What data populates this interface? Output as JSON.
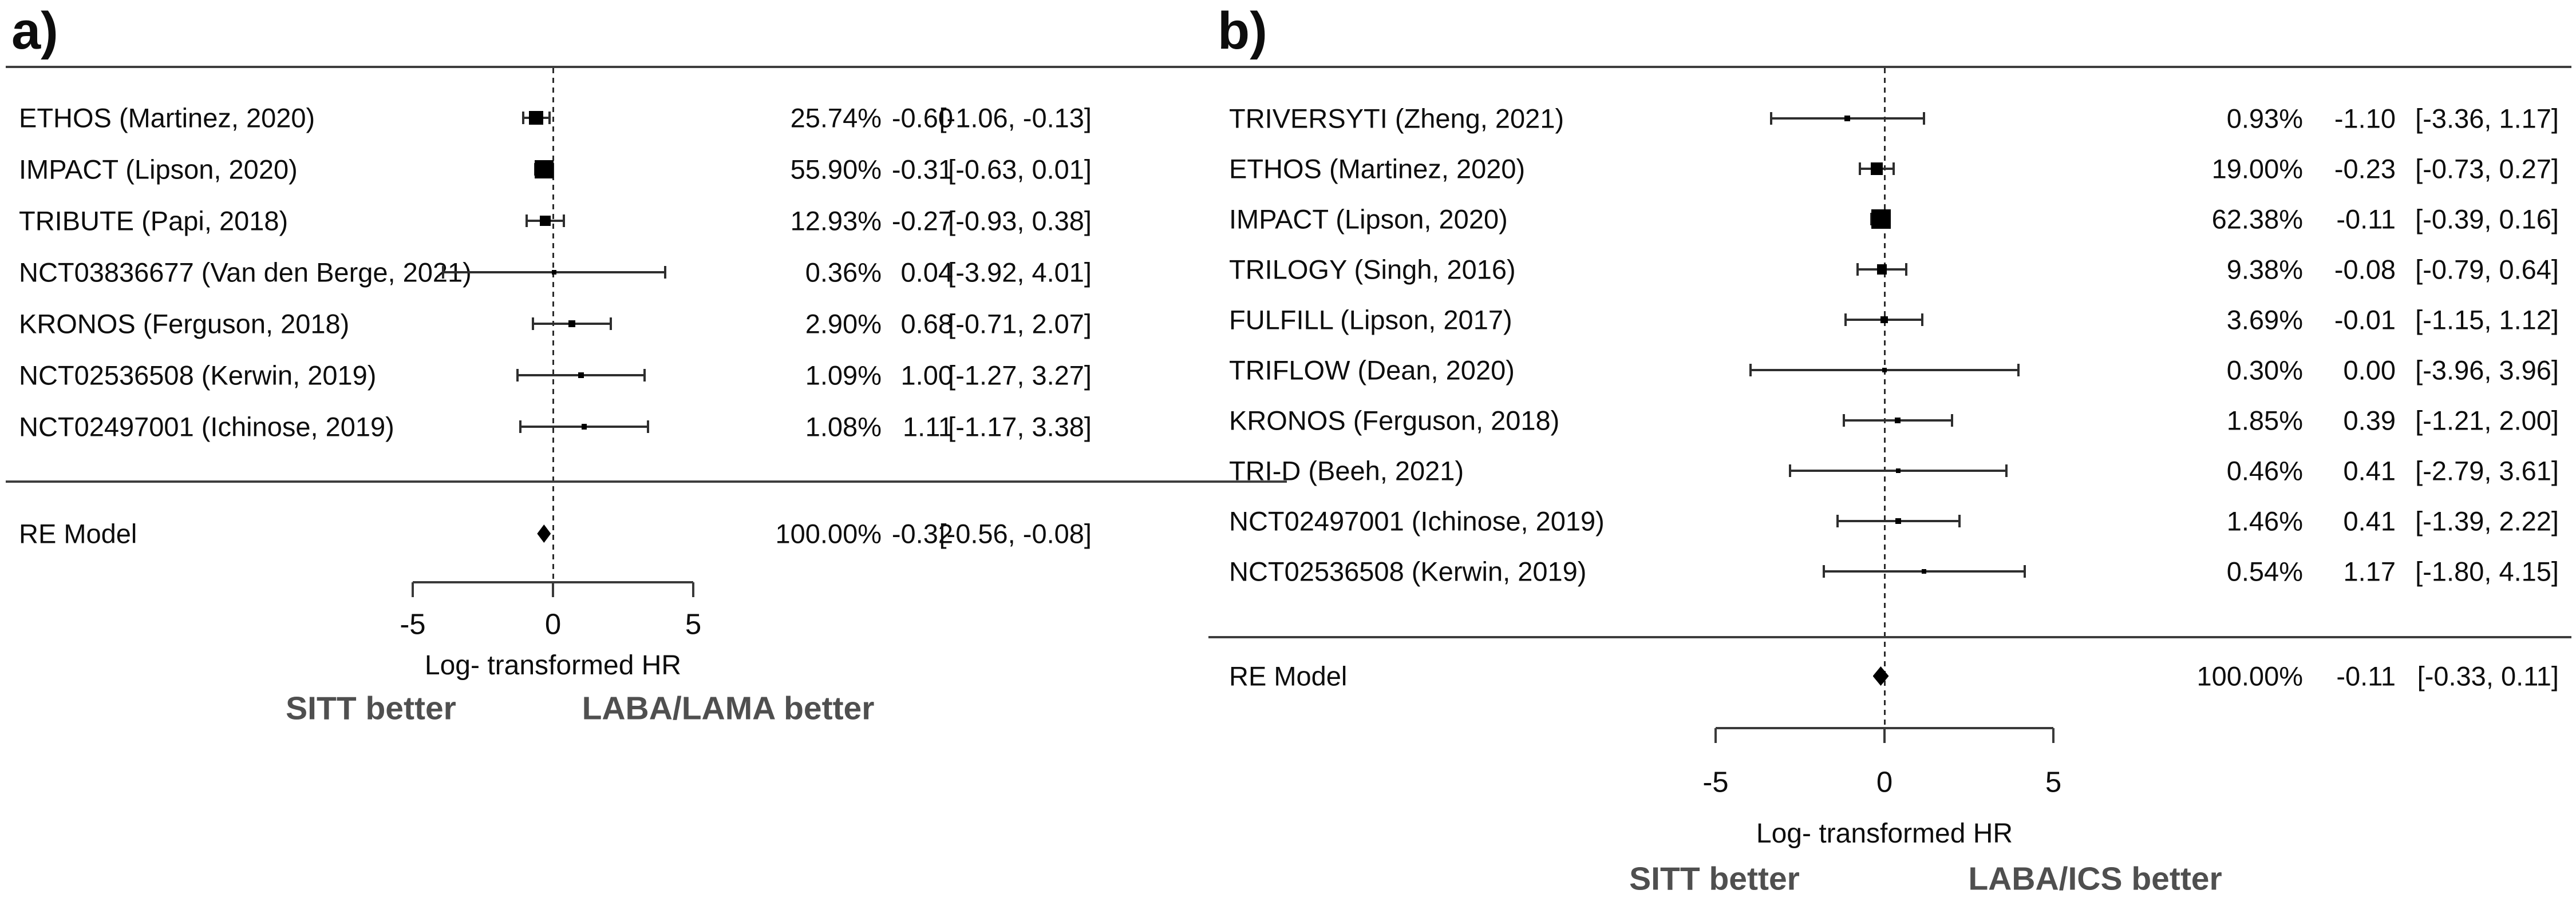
{
  "chart_data": [
    {
      "type": "scatter",
      "subtype": "forest-plot",
      "panel_label": "a)",
      "studies": [
        {
          "label": "ETHOS (Martinez, 2020)",
          "weight": "25.74%",
          "weight_value": 25.74,
          "estimate": "-0.60",
          "estimate_value": -0.6,
          "ci": "[-1.06, -0.13]",
          "ci_low": -1.06,
          "ci_high": -0.13
        },
        {
          "label": "IMPACT (Lipson, 2020)",
          "weight": "55.90%",
          "weight_value": 55.9,
          "estimate": "-0.31",
          "estimate_value": -0.31,
          "ci": "[-0.63, 0.01]",
          "ci_low": -0.63,
          "ci_high": 0.01
        },
        {
          "label": "TRIBUTE (Papi, 2018)",
          "weight": "12.93%",
          "weight_value": 12.93,
          "estimate": "-0.27",
          "estimate_value": -0.27,
          "ci": "[-0.93, 0.38]",
          "ci_low": -0.93,
          "ci_high": 0.38
        },
        {
          "label": "NCT03836677 (Van den Berge, 2021)",
          "weight": "0.36%",
          "weight_value": 0.36,
          "estimate": "0.04",
          "estimate_value": 0.04,
          "ci": "[-3.92, 4.01]",
          "ci_low": -3.92,
          "ci_high": 4.01
        },
        {
          "label": "KRONOS (Ferguson, 2018)",
          "weight": "2.90%",
          "weight_value": 2.9,
          "estimate": "0.68",
          "estimate_value": 0.68,
          "ci": "[-0.71, 2.07]",
          "ci_low": -0.71,
          "ci_high": 2.07
        },
        {
          "label": "NCT02536508 (Kerwin, 2019)",
          "weight": "1.09%",
          "weight_value": 1.09,
          "estimate": "1.00",
          "estimate_value": 1.0,
          "ci": "[-1.27, 3.27]",
          "ci_low": -1.27,
          "ci_high": 3.27
        },
        {
          "label": "NCT02497001 (Ichinose, 2019)",
          "weight": "1.08%",
          "weight_value": 1.08,
          "estimate": "1.11",
          "estimate_value": 1.11,
          "ci": "[-1.17, 3.38]",
          "ci_low": -1.17,
          "ci_high": 3.38
        }
      ],
      "summary": {
        "label": "RE Model",
        "weight": "100.00%",
        "weight_value": 100.0,
        "estimate": "-0.32",
        "estimate_value": -0.32,
        "ci": "[-0.56, -0.08]",
        "ci_low": -0.56,
        "ci_high": -0.08
      },
      "axis": {
        "min": -5,
        "max": 5,
        "ticks": [
          -5,
          0,
          5
        ],
        "tick_labels": [
          "-5",
          "0",
          "5"
        ],
        "title": "Log- transformed HR",
        "zero_line": 0
      },
      "direction_labels": {
        "left": "SITT better",
        "right": "LABA/LAMA better"
      }
    },
    {
      "type": "scatter",
      "subtype": "forest-plot",
      "panel_label": "b)",
      "studies": [
        {
          "label": "TRIVERSYTI (Zheng, 2021)",
          "weight": "0.93%",
          "weight_value": 0.93,
          "estimate": "-1.10",
          "estimate_value": -1.1,
          "ci": "[-3.36, 1.17]",
          "ci_low": -3.36,
          "ci_high": 1.17
        },
        {
          "label": "ETHOS (Martinez, 2020)",
          "weight": "19.00%",
          "weight_value": 19.0,
          "estimate": "-0.23",
          "estimate_value": -0.23,
          "ci": "[-0.73, 0.27]",
          "ci_low": -0.73,
          "ci_high": 0.27
        },
        {
          "label": "IMPACT (Lipson, 2020)",
          "weight": "62.38%",
          "weight_value": 62.38,
          "estimate": "-0.11",
          "estimate_value": -0.11,
          "ci": "[-0.39, 0.16]",
          "ci_low": -0.39,
          "ci_high": 0.16
        },
        {
          "label": "TRILOGY (Singh, 2016)",
          "weight": "9.38%",
          "weight_value": 9.38,
          "estimate": "-0.08",
          "estimate_value": -0.08,
          "ci": "[-0.79, 0.64]",
          "ci_low": -0.79,
          "ci_high": 0.64
        },
        {
          "label": "FULFILL (Lipson, 2017)",
          "weight": "3.69%",
          "weight_value": 3.69,
          "estimate": "-0.01",
          "estimate_value": -0.01,
          "ci": "[-1.15, 1.12]",
          "ci_low": -1.15,
          "ci_high": 1.12
        },
        {
          "label": "TRIFLOW (Dean, 2020)",
          "weight": "0.30%",
          "weight_value": 0.3,
          "estimate": "0.00",
          "estimate_value": 0.0,
          "ci": "[-3.96, 3.96]",
          "ci_low": -3.96,
          "ci_high": 3.96
        },
        {
          "label": "KRONOS (Ferguson, 2018)",
          "weight": "1.85%",
          "weight_value": 1.85,
          "estimate": "0.39",
          "estimate_value": 0.39,
          "ci": "[-1.21, 2.00]",
          "ci_low": -1.21,
          "ci_high": 2.0
        },
        {
          "label": "TRI-D (Beeh, 2021)",
          "weight": "0.46%",
          "weight_value": 0.46,
          "estimate": "0.41",
          "estimate_value": 0.41,
          "ci": "[-2.79, 3.61]",
          "ci_low": -2.79,
          "ci_high": 3.61
        },
        {
          "label": "NCT02497001 (Ichinose, 2019)",
          "weight": "1.46%",
          "weight_value": 1.46,
          "estimate": "0.41",
          "estimate_value": 0.41,
          "ci": "[-1.39, 2.22]",
          "ci_low": -1.39,
          "ci_high": 2.22
        },
        {
          "label": "NCT02536508 (Kerwin, 2019)",
          "weight": "0.54%",
          "weight_value": 0.54,
          "estimate": "1.17",
          "estimate_value": 1.17,
          "ci": "[-1.80, 4.15]",
          "ci_low": -1.8,
          "ci_high": 4.15
        }
      ],
      "summary": {
        "label": "RE Model",
        "weight": "100.00%",
        "weight_value": 100.0,
        "estimate": "-0.11",
        "estimate_value": -0.11,
        "ci": "[-0.33, 0.11]",
        "ci_low": -0.33,
        "ci_high": 0.11
      },
      "axis": {
        "min": -5,
        "max": 5,
        "ticks": [
          -5,
          0,
          5
        ],
        "tick_labels": [
          "-5",
          "0",
          "5"
        ],
        "title": "Log- transformed HR",
        "zero_line": 0
      },
      "direction_labels": {
        "left": "SITT better",
        "right": "LABA/ICS better"
      }
    }
  ]
}
